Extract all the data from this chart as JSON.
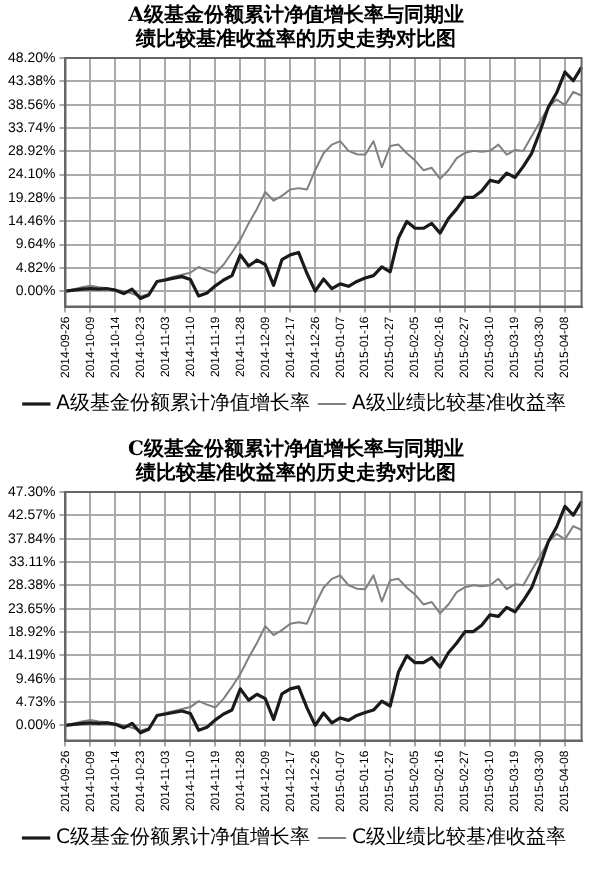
{
  "chart_data": [
    {
      "type": "line",
      "title": "A级基金份额累计净值增长率与同期业绩比较基准收益率的历史走势对比图",
      "categories": [
        "2014-09-26",
        null,
        null,
        "2014-10-09",
        null,
        null,
        "2014-10-14",
        null,
        null,
        "2014-10-23",
        null,
        null,
        "2014-11-03",
        null,
        null,
        "2014-11-10",
        null,
        null,
        "2014-11-19",
        null,
        null,
        "2014-11-28",
        null,
        null,
        "2014-12-09",
        null,
        null,
        "2014-12-17",
        null,
        null,
        "2014-12-26",
        null,
        null,
        "2015-01-07",
        null,
        null,
        "2015-01-16",
        null,
        null,
        "2015-01-27",
        null,
        null,
        "2015-02-05",
        null,
        null,
        "2015-02-16",
        null,
        null,
        "2015-02-27",
        null,
        null,
        "2015-03-10",
        null,
        null,
        "2015-03-19",
        null,
        null,
        "2015-03-30",
        null,
        null,
        "2015-04-08",
        null,
        null
      ],
      "series": [
        {
          "name": "A级基金份额累计净值增长率",
          "color": "#1a1a1a",
          "values": [
            0,
            0.2,
            0.4,
            0.5,
            0.4,
            0.5,
            0.2,
            -0.5,
            0.4,
            -1.5,
            -0.8,
            2.0,
            2.3,
            2.7,
            3.0,
            2.4,
            -1.0,
            -0.4,
            1.1,
            2.3,
            3.2,
            7.5,
            5.2,
            6.4,
            5.5,
            1.2,
            6.5,
            7.5,
            8.0,
            3.7,
            0,
            2.5,
            0.5,
            1.5,
            1.0,
            2.0,
            2.7,
            3.2,
            5.0,
            4.0,
            11.0,
            14.4,
            13.0,
            13.0,
            14.0,
            12.0,
            15.0,
            17.0,
            19.4,
            19.4,
            20.7,
            22.9,
            22.5,
            24.4,
            23.5,
            25.8,
            28.5,
            33.0,
            38.0,
            41.0,
            45.3,
            43.5,
            46.3
          ]
        },
        {
          "name": "A级业绩比较基准收益率",
          "color": "#808080",
          "values": [
            0,
            0.4,
            0.8,
            1.1,
            0.8,
            0.6,
            0.3,
            0,
            -0.5,
            -1.1,
            -0.6,
            2.0,
            2.5,
            3.0,
            3.4,
            3.8,
            5.0,
            4.3,
            3.7,
            5.5,
            8.0,
            10.6,
            14.0,
            17.0,
            20.5,
            18.7,
            19.7,
            21.0,
            21.3,
            21.0,
            25.0,
            28.5,
            30.3,
            31.0,
            29.0,
            28.3,
            28.2,
            31.0,
            25.6,
            30.0,
            30.3,
            28.5,
            27.0,
            25.0,
            25.5,
            23.2,
            25.0,
            27.5,
            28.6,
            29.0,
            28.8,
            29.0,
            30.3,
            28.2,
            29.2,
            29.0,
            32.0,
            35.0,
            38.0,
            39.6,
            38.5,
            41.2,
            40.4
          ]
        }
      ],
      "ylim": [
        -3.2,
        48.2
      ],
      "yticks": [
        {
          "value": 0,
          "label": "0.00%"
        },
        {
          "value": 4.82,
          "label": "4.82%"
        },
        {
          "value": 9.64,
          "label": "9.64%"
        },
        {
          "value": 14.46,
          "label": "14.46%"
        },
        {
          "value": 19.28,
          "label": "19.28%"
        },
        {
          "value": 24.1,
          "label": "24.10%"
        },
        {
          "value": 28.92,
          "label": "28.92%"
        },
        {
          "value": 33.74,
          "label": "33.74%"
        },
        {
          "value": 38.56,
          "label": "38.56%"
        },
        {
          "value": 43.38,
          "label": "43.38%"
        },
        {
          "value": 48.2,
          "label": "48.20%"
        }
      ],
      "grid": true,
      "legend": "bottom",
      "marker": "none",
      "line_style": "solid"
    },
    {
      "type": "line",
      "title": "C级基金份额累计净值增长率与同期业绩比较基准收益率的历史走势对比图",
      "categories": [
        "2014-09-26",
        null,
        null,
        "2014-10-09",
        null,
        null,
        "2014-10-14",
        null,
        null,
        "2014-10-23",
        null,
        null,
        "2014-11-03",
        null,
        null,
        "2014-11-10",
        null,
        null,
        "2014-11-19",
        null,
        null,
        "2014-11-28",
        null,
        null,
        "2014-12-09",
        null,
        null,
        "2014-12-17",
        null,
        null,
        "2014-12-26",
        null,
        null,
        "2015-01-07",
        null,
        null,
        "2015-01-16",
        null,
        null,
        "2015-01-27",
        null,
        null,
        "2015-02-05",
        null,
        null,
        "2015-02-16",
        null,
        null,
        "2015-02-27",
        null,
        null,
        "2015-03-10",
        null,
        null,
        "2015-03-19",
        null,
        null,
        "2015-03-30",
        null,
        null,
        "2015-04-08",
        null,
        null
      ],
      "series": [
        {
          "name": "C级基金份额累计净值增长率",
          "color": "#1a1a1a",
          "values": [
            0,
            0.2,
            0.4,
            0.5,
            0.4,
            0.5,
            0.2,
            -0.5,
            0.4,
            -1.5,
            -0.8,
            2.0,
            2.3,
            2.6,
            2.9,
            2.4,
            -1.0,
            -0.4,
            1.1,
            2.3,
            3.1,
            7.4,
            5.1,
            6.3,
            5.4,
            1.2,
            6.4,
            7.4,
            7.8,
            3.6,
            0,
            2.5,
            0.5,
            1.5,
            1.0,
            2.0,
            2.6,
            3.1,
            4.9,
            3.9,
            10.8,
            14.1,
            12.7,
            12.7,
            13.7,
            11.8,
            14.7,
            16.7,
            19.0,
            19.0,
            20.3,
            22.4,
            22.1,
            23.9,
            23.0,
            25.3,
            27.9,
            32.3,
            37.2,
            40.2,
            44.4,
            42.6,
            45.4
          ]
        },
        {
          "name": "C级业绩比较基准收益率",
          "color": "#808080",
          "values": [
            0,
            0.4,
            0.8,
            1.1,
            0.8,
            0.6,
            0.3,
            0,
            -0.5,
            -1.1,
            -0.6,
            2.0,
            2.5,
            2.9,
            3.3,
            3.7,
            4.9,
            4.2,
            3.6,
            5.4,
            7.8,
            10.4,
            13.7,
            16.7,
            20.1,
            18.3,
            19.3,
            20.6,
            20.9,
            20.6,
            24.5,
            27.9,
            29.7,
            30.4,
            28.4,
            27.7,
            27.6,
            30.4,
            25.1,
            29.4,
            29.7,
            27.9,
            26.5,
            24.5,
            25.0,
            22.7,
            24.5,
            27.0,
            28.0,
            28.4,
            28.2,
            28.4,
            29.7,
            27.6,
            28.6,
            28.4,
            31.4,
            34.3,
            37.2,
            38.8,
            37.7,
            40.4,
            39.6
          ]
        }
      ],
      "ylim": [
        -3.1,
        47.3
      ],
      "yticks": [
        {
          "value": 0,
          "label": "0.00%"
        },
        {
          "value": 4.73,
          "label": "4.73%"
        },
        {
          "value": 9.46,
          "label": "9.46%"
        },
        {
          "value": 14.19,
          "label": "14.19%"
        },
        {
          "value": 18.92,
          "label": "18.92%"
        },
        {
          "value": 23.65,
          "label": "23.65%"
        },
        {
          "value": 28.38,
          "label": "28.38%"
        },
        {
          "value": 33.11,
          "label": "33.11%"
        },
        {
          "value": 37.84,
          "label": "37.84%"
        },
        {
          "value": 42.57,
          "label": "42.57%"
        },
        {
          "value": 47.3,
          "label": "47.30%"
        }
      ],
      "grid": true,
      "legend": "bottom",
      "marker": "none",
      "line_style": "solid"
    }
  ]
}
